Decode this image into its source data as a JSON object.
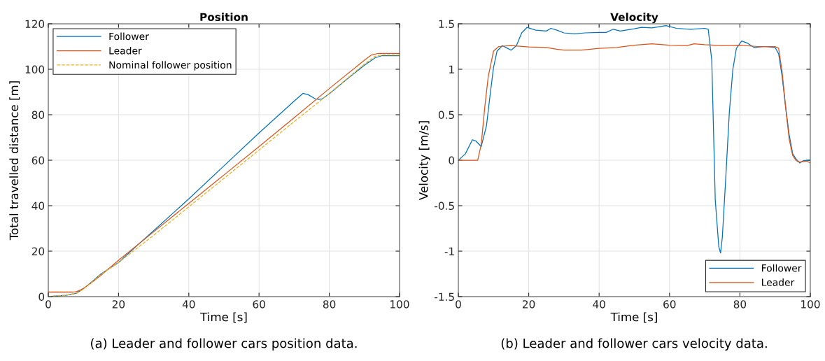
{
  "chart_data": [
    {
      "type": "line",
      "title": "Position",
      "xlabel": "Time [s]",
      "ylabel": "Total travelled distance [m]",
      "xlim": [
        0,
        100
      ],
      "ylim": [
        0,
        120
      ],
      "xticks": [
        0,
        20,
        40,
        60,
        80,
        100
      ],
      "yticks": [
        0,
        20,
        40,
        60,
        80,
        100,
        120
      ],
      "grid": true,
      "legend": "top left",
      "annotations": [
        "(a) Leader and follower cars position data."
      ],
      "series": [
        {
          "name": "Follower",
          "color": "#0072bd",
          "x": [
            0,
            5,
            8,
            10,
            12,
            15,
            20,
            26,
            30,
            40,
            50,
            60,
            70,
            72.5,
            74,
            76,
            77,
            78,
            80,
            85,
            90,
            93,
            95,
            100
          ],
          "values": [
            0,
            0.6,
            1.5,
            3.5,
            6,
            10,
            15,
            23.5,
            29,
            43,
            57.5,
            72,
            86,
            89.4,
            88.8,
            87,
            86.7,
            87,
            89.2,
            95.6,
            101.8,
            105,
            106,
            106
          ]
        },
        {
          "name": "Leader",
          "color": "#d95319",
          "x": [
            0,
            7,
            8,
            9,
            10,
            12,
            15,
            20,
            30,
            40,
            50,
            60,
            70,
            80,
            90,
            92,
            94,
            100
          ],
          "values": [
            2,
            2,
            2.2,
            2.8,
            3.6,
            5.8,
            9.4,
            16,
            28.5,
            41,
            53.5,
            66,
            78.7,
            91.5,
            104,
            106.3,
            107,
            107
          ]
        },
        {
          "name": "Nominal follower position",
          "color": "#edb120",
          "line_style": "dashed",
          "x": [
            0,
            5,
            8,
            10,
            12,
            15,
            20,
            30,
            40,
            50,
            60,
            70,
            80,
            90,
            93,
            95,
            100
          ],
          "values": [
            0,
            0.6,
            1.5,
            3.3,
            5.8,
            9.8,
            15,
            27,
            39.5,
            52,
            64.5,
            77,
            89.3,
            102.3,
            105.7,
            106.3,
            106.3
          ]
        }
      ]
    },
    {
      "type": "line",
      "title": "Velocity",
      "xlabel": "Time [s]",
      "ylabel": "Velocity [m/s]",
      "xlim": [
        0,
        100
      ],
      "ylim": [
        -1.5,
        1.5
      ],
      "xticks": [
        0,
        20,
        40,
        60,
        80,
        100
      ],
      "yticks": [
        -1.5,
        -1,
        -0.5,
        0,
        0.5,
        1,
        1.5
      ],
      "grid": true,
      "legend": "bottom right",
      "annotations": [
        "(b) Leader and follower cars velocity data."
      ],
      "series": [
        {
          "name": "Follower",
          "color": "#0072bd",
          "x": [
            0,
            2,
            4,
            5,
            6.5,
            8,
            9,
            10,
            11,
            12.5,
            14,
            15,
            16.5,
            18,
            19.5,
            22,
            25,
            26.3,
            28,
            30,
            33,
            36,
            40,
            42,
            44,
            46,
            50,
            52,
            55,
            59,
            62,
            66,
            70,
            71,
            72,
            72.5,
            73,
            74,
            74.5,
            75,
            76,
            77,
            78,
            79,
            80.5,
            82,
            84,
            87,
            90,
            91,
            92,
            93,
            94,
            95,
            96,
            97,
            98,
            100
          ],
          "values": [
            0,
            0.07,
            0.225,
            0.21,
            0.15,
            0.38,
            0.71,
            1.02,
            1.2,
            1.26,
            1.23,
            1.21,
            1.26,
            1.4,
            1.46,
            1.43,
            1.42,
            1.45,
            1.43,
            1.4,
            1.39,
            1.4,
            1.405,
            1.405,
            1.44,
            1.42,
            1.445,
            1.46,
            1.455,
            1.48,
            1.45,
            1.44,
            1.45,
            1.44,
            1.1,
            0.33,
            -0.44,
            -0.95,
            -1.02,
            -0.85,
            -0.18,
            0.53,
            1.0,
            1.23,
            1.31,
            1.29,
            1.24,
            1.25,
            1.24,
            1.17,
            0.92,
            0.58,
            0.28,
            0.07,
            0.01,
            -0.03,
            -0.005,
            0
          ]
        },
        {
          "name": "Leader",
          "color": "#d95319",
          "x": [
            0,
            5.5,
            6.5,
            7.5,
            8.5,
            10,
            11.5,
            15,
            20,
            25,
            28,
            30,
            35,
            40,
            45,
            50,
            55,
            60,
            65,
            67,
            70,
            75,
            80,
            85,
            90,
            91,
            92,
            93,
            94,
            95,
            96,
            97,
            99,
            100
          ],
          "values": [
            0,
            0,
            0.17,
            0.58,
            0.92,
            1.2,
            1.25,
            1.26,
            1.245,
            1.24,
            1.22,
            1.21,
            1.21,
            1.23,
            1.24,
            1.265,
            1.28,
            1.265,
            1.26,
            1.28,
            1.27,
            1.26,
            1.265,
            1.25,
            1.25,
            1.23,
            0.97,
            0.58,
            0.23,
            0.05,
            -0.005,
            -0.02,
            -0.01,
            -0.03
          ]
        }
      ]
    }
  ]
}
